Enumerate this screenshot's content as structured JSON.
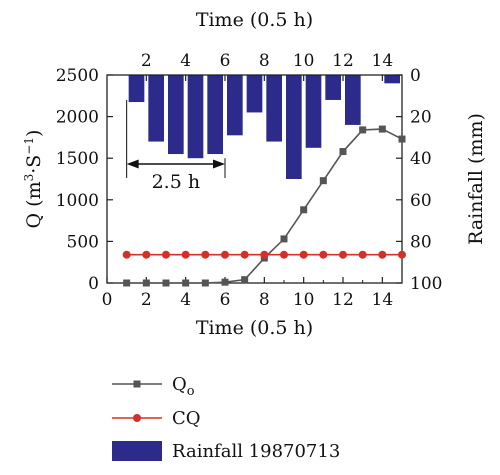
{
  "chart_data": {
    "type": "bar+line",
    "x_bottom": {
      "label": "Time (0.5 h)",
      "ticks": [
        0,
        2,
        4,
        6,
        8,
        10,
        12,
        14
      ],
      "range": [
        0,
        15
      ]
    },
    "x_top": {
      "label": "Time (0.5 h)",
      "ticks": [
        2,
        4,
        6,
        8,
        10,
        12,
        14
      ],
      "range": [
        0,
        15
      ]
    },
    "y_left": {
      "label_main": "Q (m",
      "label_sup1": "3",
      "label_mid": "·S",
      "label_sup2": "−1",
      "label_end": ")",
      "ticks": [
        0,
        500,
        1000,
        1500,
        2000,
        2500
      ],
      "range": [
        0,
        2500
      ]
    },
    "y_right": {
      "label": "Rainfall (mm)",
      "ticks": [
        0,
        20,
        40,
        60,
        80,
        100
      ],
      "range": [
        0,
        100
      ],
      "inverted": true
    },
    "annotation": {
      "text": "2.5 h",
      "from_x": 1,
      "to_x": 6,
      "y": 1430
    },
    "series": [
      {
        "name": "Q",
        "name_sub": "o",
        "kind": "line",
        "color": "#555555",
        "marker": "square",
        "x": [
          1,
          2,
          3,
          4,
          5,
          6,
          7,
          8,
          9,
          10,
          11,
          12,
          13,
          14,
          15
        ],
        "y": [
          0,
          0,
          0,
          0,
          0,
          10,
          40,
          300,
          530,
          880,
          1230,
          1580,
          1840,
          1850,
          1730
        ]
      },
      {
        "name": "CQ",
        "kind": "line",
        "color": "#d4302a",
        "marker": "circle",
        "x": [
          1,
          2,
          3,
          4,
          5,
          6,
          7,
          8,
          9,
          10,
          11,
          12,
          13,
          14,
          15
        ],
        "y": [
          340,
          340,
          340,
          340,
          340,
          340,
          340,
          340,
          340,
          340,
          340,
          340,
          340,
          340,
          340
        ]
      },
      {
        "name": "Rainfall 19870713",
        "kind": "bar",
        "axis": "right",
        "color": "#2c2a8a",
        "x": [
          1.5,
          2.5,
          3.5,
          4.5,
          5.5,
          6.5,
          7.5,
          8.5,
          9.5,
          10.5,
          11.5,
          12.5,
          13.5,
          14.5
        ],
        "y": [
          13,
          32,
          38,
          40,
          38,
          29,
          18,
          32,
          50,
          35,
          12,
          24,
          0,
          4
        ]
      }
    ],
    "legend": {
      "placement": "bottom"
    }
  }
}
